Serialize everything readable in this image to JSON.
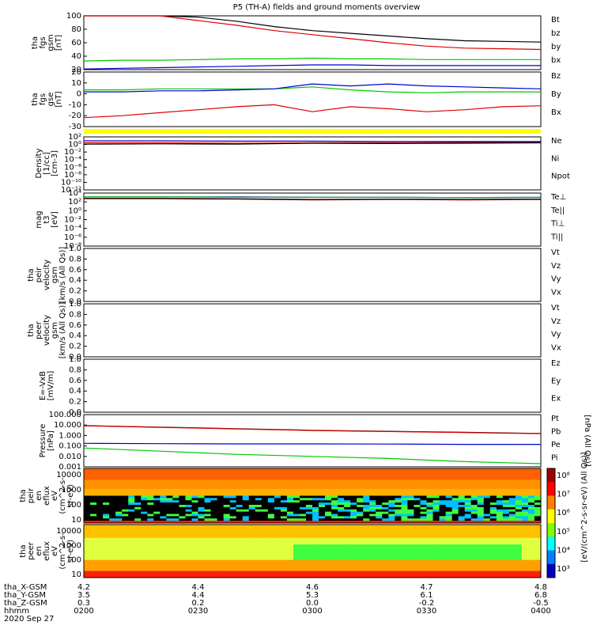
{
  "title": "P5 (TH-A) fields and ground moments overview",
  "colors": {
    "black": "#000000",
    "red": "#e00000",
    "green": "#00c800",
    "blue": "#0000d0",
    "yellow": "#ffff00"
  },
  "chart_data": [
    {
      "id": "fgs_gsm",
      "type": "line",
      "ylabel": [
        "tha",
        "fgs",
        "gsm",
        "[nT]"
      ],
      "ylim": [
        20,
        100
      ],
      "yticks": [
        "100",
        "80",
        "60",
        "40",
        "20"
      ],
      "x": [
        "02:00",
        "02:10",
        "02:20",
        "02:30",
        "02:40",
        "02:50",
        "03:00",
        "03:10",
        "03:20",
        "03:30",
        "03:40",
        "03:50",
        "04:00"
      ],
      "series": [
        {
          "name": "Bt",
          "color": "black",
          "values": [
            115,
            110,
            104,
            98,
            92,
            84,
            78,
            74,
            70,
            66,
            63,
            62,
            61
          ]
        },
        {
          "name": "bz",
          "color": "red",
          "values": [
            115,
            108,
            100,
            93,
            86,
            78,
            72,
            66,
            60,
            55,
            52,
            51,
            50
          ]
        },
        {
          "name": "by",
          "color": "green",
          "values": [
            33,
            34,
            34,
            35,
            36,
            36,
            37,
            36,
            36,
            35,
            35,
            35,
            35
          ]
        },
        {
          "name": "bx",
          "color": "blue",
          "values": [
            21,
            22,
            23,
            24,
            25,
            26,
            27,
            27,
            26,
            26,
            26,
            26,
            26
          ]
        }
      ]
    },
    {
      "id": "fgs_gse",
      "type": "line",
      "ylabel": [
        "tha",
        "fgs",
        "gse",
        "[nT]"
      ],
      "ylim": [
        -35,
        20
      ],
      "yticks": [
        "20",
        "10",
        "0",
        "-10",
        "-20",
        "-30"
      ],
      "x": [
        "02:00",
        "02:10",
        "02:20",
        "02:30",
        "02:40",
        "02:50",
        "03:00",
        "03:10",
        "03:20",
        "03:30",
        "03:40",
        "03:50",
        "04:00"
      ],
      "series": [
        {
          "name": "Bz",
          "color": "red",
          "values": [
            -26,
            -24,
            -21,
            -18,
            -15,
            -13,
            -20,
            -15,
            -17,
            -20,
            -18,
            -15,
            -14
          ]
        },
        {
          "name": "By",
          "color": "green",
          "values": [
            2,
            2,
            3,
            3,
            3,
            3,
            5,
            2,
            0,
            -1,
            0,
            0,
            0
          ]
        },
        {
          "name": "Bx",
          "color": "blue",
          "values": [
            0,
            0,
            1,
            1,
            2,
            3,
            8,
            6,
            8,
            6,
            5,
            4,
            3
          ]
        }
      ]
    },
    {
      "id": "density",
      "type": "line",
      "ylabel": [
        "Density",
        "[1/cc]",
        "[cm-3]"
      ],
      "log": true,
      "ylim": [
        -14,
        2
      ],
      "yticks": [
        "10²",
        "10⁰",
        "10⁻²",
        "10⁻⁴",
        "10⁻⁶",
        "10⁻⁸",
        "10⁻¹⁰",
        "10⁻¹²"
      ],
      "x": [
        "02:00",
        "02:20",
        "02:40",
        "03:00",
        "03:20",
        "03:40",
        "04:00"
      ],
      "series": [
        {
          "name": "Ne",
          "color": "red",
          "values": [
            0.2,
            0.2,
            0.1,
            0.2,
            0.2,
            0.3,
            0.3
          ]
        },
        {
          "name": "Ni",
          "color": "black",
          "values": [
            -0.2,
            -0.1,
            -0.2,
            0.1,
            0,
            0.1,
            0.2
          ]
        },
        {
          "name": "Npot",
          "color": "blue",
          "values": [
            0.8,
            0.8,
            0.7,
            0.7,
            0.6,
            0.6,
            0.6
          ]
        }
      ]
    },
    {
      "id": "temperature",
      "type": "line",
      "ylabel": [
        "mag",
        "t3",
        "[eV]"
      ],
      "log": true,
      "ylim": [
        -10,
        4
      ],
      "yticks": [
        "10⁴",
        "10²",
        "10⁰",
        "10⁻²",
        "10⁻⁴",
        "10⁻⁶",
        "10⁻⁸"
      ],
      "x": [
        "02:00",
        "02:20",
        "02:40",
        "03:00",
        "03:20",
        "03:40",
        "04:00"
      ],
      "series": [
        {
          "name": "Te⊥",
          "color": "red",
          "values": [
            2.5,
            2.5,
            2.4,
            2.2,
            2.3,
            2.2,
            2.3
          ]
        },
        {
          "name": "Te||",
          "color": "black",
          "values": [
            2.6,
            2.6,
            2.5,
            2.3,
            2.4,
            2.3,
            2.4
          ]
        },
        {
          "name": "Ti⊥",
          "color": "blue",
          "values": [
            3.0,
            3.0,
            3.0,
            2.9,
            2.9,
            2.8,
            2.9
          ]
        },
        {
          "name": "Ti||",
          "color": "green",
          "values": [
            3.0,
            3.0,
            2.9,
            2.9,
            2.9,
            2.8,
            2.8
          ]
        }
      ]
    },
    {
      "id": "peir_velocity",
      "type": "line",
      "ylabel": [
        "tha",
        "peir",
        "velocity",
        "gsm",
        "[km/s (All Qs)]"
      ],
      "ylim": [
        0,
        1
      ],
      "yticks": [
        "1.0",
        "0.8",
        "0.6",
        "0.4",
        "0.2",
        "0.0"
      ],
      "series": [
        {
          "name": "Vt",
          "color": "black"
        },
        {
          "name": "Vz",
          "color": "red"
        },
        {
          "name": "Vy",
          "color": "green"
        },
        {
          "name": "Vx",
          "color": "blue"
        }
      ]
    },
    {
      "id": "peer_velocity",
      "type": "line",
      "ylabel": [
        "tha",
        "peer",
        "velocity",
        "gsm",
        "[km/s (All Qs)]"
      ],
      "ylim": [
        0,
        1
      ],
      "yticks": [
        "1.0",
        "0.8",
        "0.6",
        "0.4",
        "0.2",
        "0.0"
      ],
      "series": [
        {
          "name": "Vt",
          "color": "black"
        },
        {
          "name": "Vz",
          "color": "red"
        },
        {
          "name": "Vy",
          "color": "green"
        },
        {
          "name": "Vx",
          "color": "blue"
        }
      ]
    },
    {
      "id": "efield",
      "type": "line",
      "ylabel": [
        "E=-VxB",
        "[mV/m]"
      ],
      "ylim": [
        0,
        1
      ],
      "yticks": [
        "1.0",
        "0.8",
        "0.6",
        "0.4",
        "0.2",
        "0.0"
      ],
      "series": [
        {
          "name": "Ez",
          "color": "red"
        },
        {
          "name": "Ey",
          "color": "green"
        },
        {
          "name": "Ex",
          "color": "blue"
        }
      ]
    },
    {
      "id": "pressure",
      "type": "line",
      "ylabel": [
        "Pressure",
        "[nPa]"
      ],
      "log": true,
      "ylim": [
        -3,
        2
      ],
      "yticks": [
        "100.000",
        "10.000",
        "1.000",
        "0.100",
        "0.010",
        "0.001"
      ],
      "ylabel_right": "[nPa (All Qs)]",
      "x": [
        "02:00",
        "02:20",
        "02:40",
        "03:00",
        "03:20",
        "03:40",
        "04:00"
      ],
      "series": [
        {
          "name": "Pt",
          "color": "black",
          "values": [
            0.95,
            0.8,
            0.65,
            0.5,
            0.4,
            0.3,
            0.2
          ]
        },
        {
          "name": "Pb",
          "color": "red",
          "values": [
            0.93,
            0.78,
            0.63,
            0.48,
            0.38,
            0.28,
            0.18
          ]
        },
        {
          "name": "Pe",
          "color": "green",
          "values": [
            -1.2,
            -1.5,
            -1.8,
            -2.0,
            -2.2,
            -2.5,
            -2.7
          ]
        },
        {
          "name": "Pi",
          "color": "blue",
          "values": [
            -0.75,
            -0.78,
            -0.8,
            -0.8,
            -0.82,
            -0.85,
            -0.85
          ]
        }
      ]
    },
    {
      "id": "peir_spectrogram",
      "type": "heatmap",
      "ylabel": [
        "tha",
        "peir",
        "en",
        "eflux",
        "eV",
        "(cm^2-s-",
        "sr-eV)"
      ],
      "yticks": [
        "10000",
        "1000",
        "100",
        "10"
      ]
    },
    {
      "id": "peer_spectrogram",
      "type": "heatmap",
      "ylabel": [
        "tha",
        "peer",
        "en",
        "eflux",
        "eV",
        "(cm^2-s-",
        "sr-eV)"
      ],
      "yticks": [
        "10000",
        "1000",
        "100",
        "10"
      ]
    }
  ],
  "colorbar": {
    "label": "[eV/(cm^2-s-sr-eV) (All Qs)]",
    "ticks": [
      "10⁸",
      "10⁷",
      "10⁶",
      "10⁵",
      "10⁴",
      "10³"
    ]
  },
  "xaxis": {
    "rows": [
      {
        "label": "tha_X-GSM",
        "values": [
          "4.2",
          "4.4",
          "4.6",
          "4.7",
          "4.8"
        ]
      },
      {
        "label": "tha_Y-GSM",
        "values": [
          "3.5",
          "4.4",
          "5.3",
          "6.1",
          "6.8"
        ]
      },
      {
        "label": "tha_Z-GSM",
        "values": [
          "0.3",
          "0.2",
          "0.0",
          "-0.2",
          "-0.5"
        ]
      },
      {
        "label": "hhmm",
        "values": [
          "0200",
          "0230",
          "0300",
          "0330",
          "0400"
        ]
      }
    ],
    "date": "2020 Sep 27"
  }
}
